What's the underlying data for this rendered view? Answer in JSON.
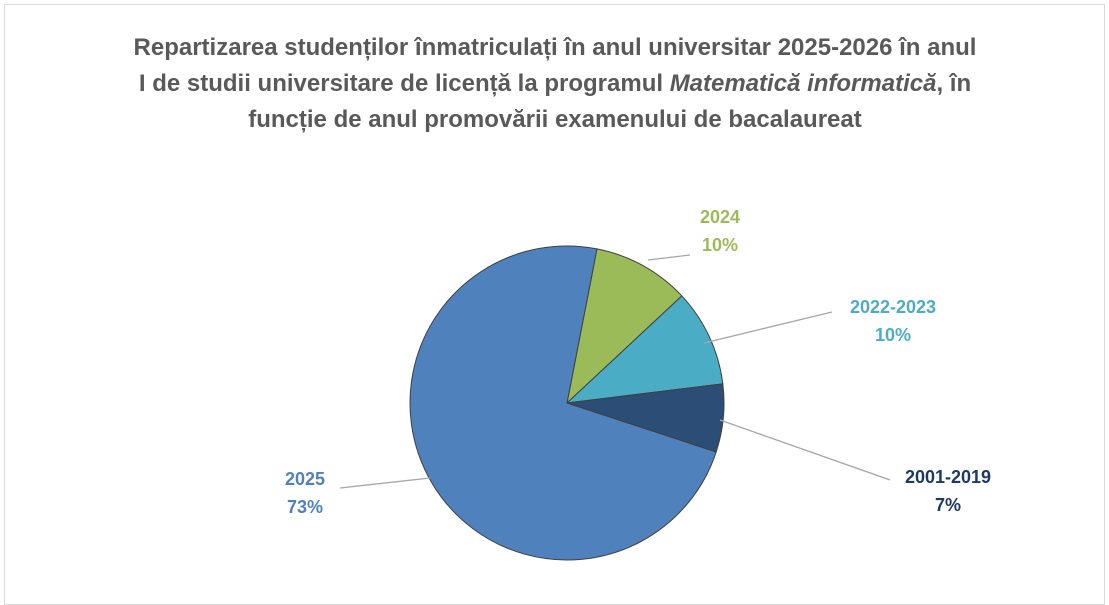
{
  "chart_data": {
    "type": "pie",
    "title": [
      "Repartizarea studenților înmatriculați în anul universitar 2025-2026 în anul I de studii universitare de licență la programul ",
      "Matematică informatică",
      ", în funcție de anul promovării examenului de bacalaureat"
    ],
    "categories": [
      "2024",
      "2022-2023",
      "2001-2019",
      "2025"
    ],
    "values": [
      10,
      10,
      7,
      73
    ],
    "value_labels": [
      "10%",
      "10%",
      "7%",
      "73%"
    ],
    "colors": [
      "#9bbb59",
      "#4bacc6",
      "#2c4d75",
      "#4f81bd"
    ]
  }
}
